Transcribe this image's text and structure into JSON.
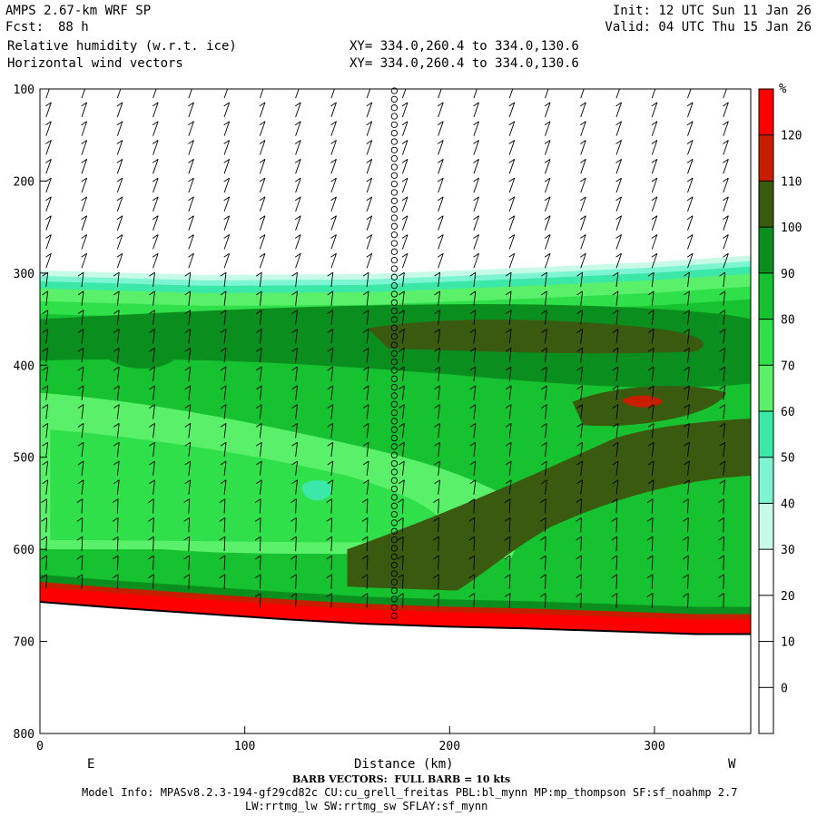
{
  "header": {
    "model": "AMPS 2.67-km WRF SP",
    "fcst_label": "Fcst:",
    "fcst_value": "88 h",
    "init": "Init: 12 UTC Sun 11 Jan 26",
    "valid": "Valid: 04 UTC Thu 15 Jan 26",
    "field1": "Relative humidity (w.r.t. ice)",
    "field2": "Horizontal wind vectors",
    "xy1": "XY= 334.0,260.4 to 334.0,130.6",
    "xy2": "XY= 334.0,260.4 to 334.0,130.6"
  },
  "footer": {
    "barb_note": "BARB VECTORS:  FULL BARB = 10 kts",
    "model_info": "Model Info: MPASv8.2.3-194-gf29cd82c CU:cu_grell_freitas PBL:bl_mynn MP:mp_thompson SF:sf_noahmp 2.7",
    "model_info2": "LW:rrtmg_lw SW:rrtmg_sw SFLAY:sf_mynn"
  },
  "chart_data": {
    "type": "heatmap",
    "title": "Relative humidity (w.r.t. ice)",
    "xlabel": "Distance (km)",
    "ylabel": "",
    "x_end_labels": {
      "left": "E",
      "right": "W"
    },
    "xlim": [
      0,
      347
    ],
    "ylim": [
      800,
      100
    ],
    "x_ticks": [
      0,
      100,
      200,
      300
    ],
    "y_ticks": [
      100,
      200,
      300,
      400,
      500,
      600,
      700,
      800
    ],
    "colorbar": {
      "unit": "%",
      "levels": [
        0,
        10,
        20,
        30,
        40,
        50,
        60,
        70,
        80,
        90,
        100,
        110,
        120
      ],
      "colors": [
        "#ffffff",
        "#ffffff",
        "#ffffff",
        "#ffffff",
        "#c8fae8",
        "#7df5d2",
        "#3ce8a8",
        "#5af06a",
        "#2fe04a",
        "#16c230",
        "#0a8f1e",
        "#3a5a10",
        "#c81e00",
        "#ff0000"
      ]
    },
    "terrain_surface": [
      {
        "x": 0,
        "p": 657
      },
      {
        "x": 40,
        "p": 664
      },
      {
        "x": 80,
        "p": 670
      },
      {
        "x": 120,
        "p": 676
      },
      {
        "x": 160,
        "p": 681
      },
      {
        "x": 200,
        "p": 684
      },
      {
        "x": 240,
        "p": 686
      },
      {
        "x": 280,
        "p": 689
      },
      {
        "x": 320,
        "p": 692
      },
      {
        "x": 347,
        "p": 692
      }
    ],
    "moist_top": [
      {
        "x": 0,
        "p": 297
      },
      {
        "x": 80,
        "p": 302
      },
      {
        "x": 160,
        "p": 301
      },
      {
        "x": 240,
        "p": 294
      },
      {
        "x": 300,
        "p": 288
      },
      {
        "x": 347,
        "p": 281
      }
    ],
    "high_rh_core": {
      "x": 293,
      "p": 440,
      "value": 110
    },
    "marked_column_x": 173,
    "wind_barbs_note": "full barb = 10 kts"
  }
}
